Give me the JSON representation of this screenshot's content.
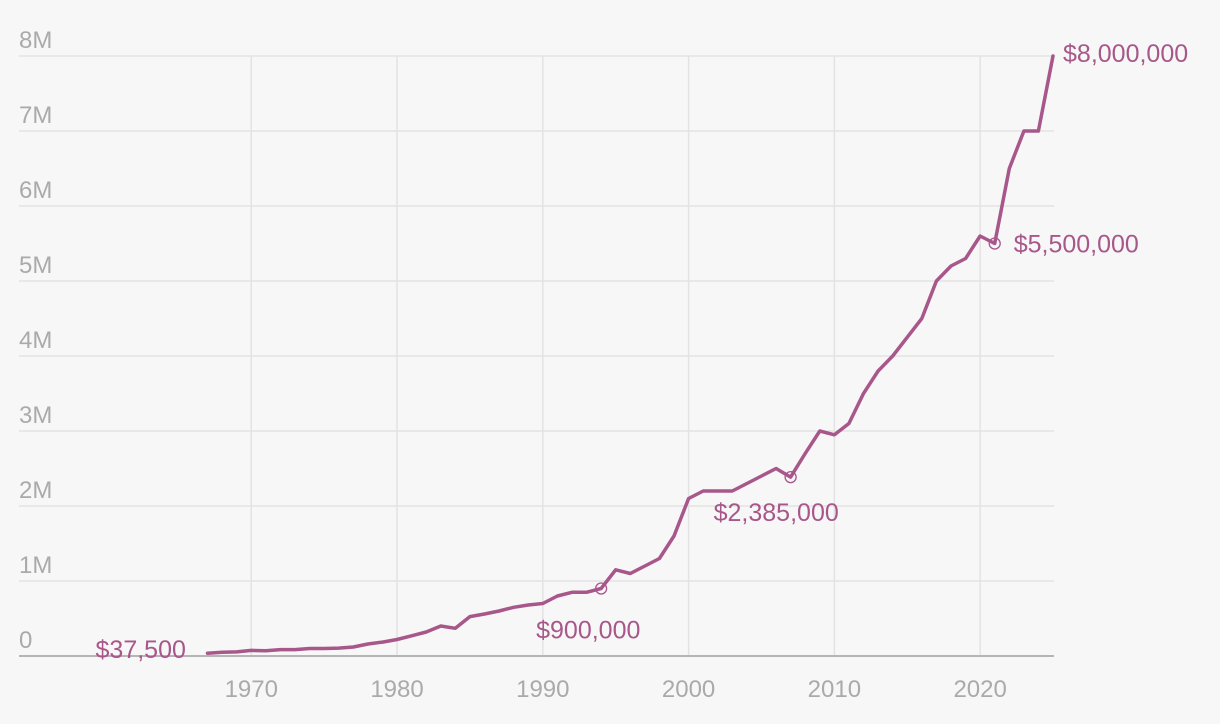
{
  "chart_data": {
    "type": "line",
    "title": "",
    "xlabel": "",
    "ylabel": "",
    "xlim": [
      1955,
      2026
    ],
    "ylim": [
      0,
      8000000
    ],
    "grid": true,
    "line_color": "#a8578a",
    "y_ticks": [
      {
        "value": 0,
        "label": "0"
      },
      {
        "value": 1000000,
        "label": "1M"
      },
      {
        "value": 2000000,
        "label": "2M"
      },
      {
        "value": 3000000,
        "label": "3M"
      },
      {
        "value": 4000000,
        "label": "4M"
      },
      {
        "value": 5000000,
        "label": "5M"
      },
      {
        "value": 6000000,
        "label": "6M"
      },
      {
        "value": 7000000,
        "label": "7M"
      },
      {
        "value": 8000000,
        "label": "8M"
      }
    ],
    "x_ticks": [
      {
        "value": 1970,
        "label": "1970"
      },
      {
        "value": 1980,
        "label": "1980"
      },
      {
        "value": 1990,
        "label": "1990"
      },
      {
        "value": 2000,
        "label": "2000"
      },
      {
        "value": 2010,
        "label": "2010"
      },
      {
        "value": 2020,
        "label": "2020"
      }
    ],
    "series": [
      {
        "x": [
          1967,
          1968,
          1969,
          1970,
          1971,
          1972,
          1973,
          1974,
          1975,
          1976,
          1977,
          1978,
          1979,
          1980,
          1981,
          1982,
          1983,
          1984,
          1985,
          1986,
          1987,
          1988,
          1989,
          1990,
          1991,
          1992,
          1993,
          1994,
          1995,
          1996,
          1997,
          1998,
          1999,
          2000,
          2001,
          2002,
          2003,
          2004,
          2005,
          2006,
          2007,
          2008,
          2009,
          2010,
          2011,
          2012,
          2013,
          2014,
          2015,
          2016,
          2017,
          2018,
          2019,
          2020,
          2021,
          2022,
          2023,
          2024,
          2025
        ],
        "y": [
          37500,
          50000,
          55000,
          75000,
          70000,
          85000,
          85000,
          100000,
          100000,
          105000,
          120000,
          160000,
          185000,
          220000,
          270000,
          320000,
          400000,
          370000,
          525000,
          560000,
          600000,
          650000,
          680000,
          700000,
          800000,
          850000,
          850000,
          900000,
          1150000,
          1100000,
          1200000,
          1300000,
          1600000,
          2100000,
          2200000,
          2200000,
          2200000,
          2300000,
          2400000,
          2500000,
          2385000,
          2700000,
          3000000,
          2950000,
          3100000,
          3500000,
          3800000,
          4000000,
          4250000,
          4500000,
          5000000,
          5200000,
          5300000,
          5600000,
          5500000,
          6500000,
          7000000,
          7000000,
          8000000
        ]
      }
    ],
    "annotations": [
      {
        "x": 1967,
        "y": 37500,
        "label": "$37,500",
        "marker": false
      },
      {
        "x": 1994,
        "y": 900000,
        "label": "$900,000",
        "marker": true
      },
      {
        "x": 2007,
        "y": 2385000,
        "label": "$2,385,000",
        "marker": true
      },
      {
        "x": 2021,
        "y": 5500000,
        "label": "$5,500,000",
        "marker": true
      },
      {
        "x": 2025,
        "y": 8000000,
        "label": "$8,000,000",
        "marker": false
      }
    ]
  }
}
